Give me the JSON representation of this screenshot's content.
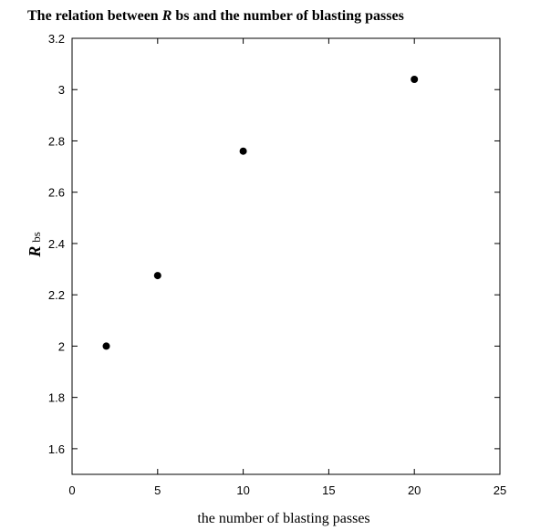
{
  "chart_data": {
    "type": "scatter",
    "title": {
      "prefix": "The relation between ",
      "symbol": "R",
      "suffix": " bs and the number of blasting passes"
    },
    "xlabel": "the number of blasting passes",
    "ylabel": {
      "symbol": "R",
      "subscript": "bs"
    },
    "xlim": [
      0,
      25
    ],
    "ylim": [
      1.5,
      3.2
    ],
    "x_ticks": [
      0,
      5,
      10,
      15,
      20,
      25
    ],
    "y_ticks": [
      1.6,
      1.8,
      2,
      2.2,
      2.4,
      2.6,
      2.8,
      3,
      3.2
    ],
    "x": [
      2,
      5,
      10,
      20
    ],
    "y": [
      2.0,
      2.275,
      2.76,
      3.04
    ],
    "marker_color": "#000000",
    "grid": false,
    "legend": "none"
  }
}
